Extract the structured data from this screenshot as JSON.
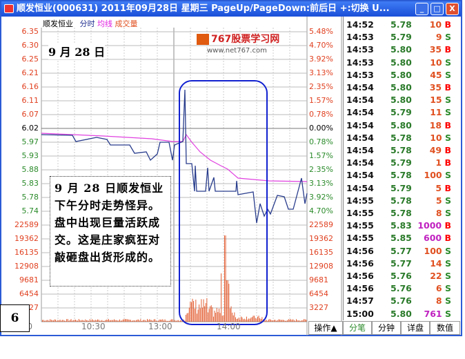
{
  "window": {
    "title": "顺发恒业(000631) 2011年09月28日 星期三 PageUp/PageDown:前后日 +:切换 U...",
    "buttons": {
      "minimize": "_",
      "maximize": "□",
      "close": "X"
    }
  },
  "legend": {
    "name": "顺发恒业",
    "fenshi": "分时",
    "avg": "均线",
    "vol": "成交量"
  },
  "price_ticks": [
    "6.35",
    "6.30",
    "6.25",
    "6.21",
    "6.16",
    "6.11",
    "6.07",
    "6.02",
    "5.97",
    "5.93",
    "5.88",
    "5.83",
    "5.78",
    "5.74"
  ],
  "pct_ticks": [
    "5.48%",
    "4.70%",
    "3.92%",
    "3.13%",
    "2.35%",
    "1.57%",
    "0.78%",
    "0.00%",
    "0.78%",
    "1.57%",
    "2.35%",
    "3.13%",
    "3.92%",
    "4.70%"
  ],
  "vol_ticks": [
    "22589",
    "19362",
    "16135",
    "12908",
    "9681",
    "6454",
    "3227"
  ],
  "time_ticks": [
    "9:30",
    "10:30",
    "13:00",
    "14:00"
  ],
  "annotation": {
    "date": "9 月 28 日",
    "text": "9 月 28 日顺发恒业下午分时走势怪异。盘中出现巨量活跃成交。这是庄家疯狂对敲砸盘出货形成的。",
    "slide": "6"
  },
  "watermark": {
    "name": "767股票学习网",
    "url": "www.net767.com"
  },
  "colors": {
    "price_line": "#283c8c",
    "avg_line": "#e040e0",
    "volume": "#e05020",
    "highlight": "#1020d0",
    "buy": "#ff0000",
    "sell": "#2a8a2a",
    "big": "#c020c0"
  },
  "trades": [
    {
      "time": "14:52",
      "price": "5.78",
      "vol": "10",
      "side": "B"
    },
    {
      "time": "14:53",
      "price": "5.79",
      "vol": "9",
      "side": "S"
    },
    {
      "time": "14:53",
      "price": "5.80",
      "vol": "35",
      "side": "B"
    },
    {
      "time": "14:53",
      "price": "5.80",
      "vol": "10",
      "side": "S"
    },
    {
      "time": "14:53",
      "price": "5.80",
      "vol": "45",
      "side": "S"
    },
    {
      "time": "14:54",
      "price": "5.80",
      "vol": "35",
      "side": "B"
    },
    {
      "time": "14:54",
      "price": "5.80",
      "vol": "15",
      "side": "S"
    },
    {
      "time": "14:54",
      "price": "5.79",
      "vol": "11",
      "side": "S"
    },
    {
      "time": "14:54",
      "price": "5.80",
      "vol": "18",
      "side": "B"
    },
    {
      "time": "14:54",
      "price": "5.78",
      "vol": "10",
      "side": "S"
    },
    {
      "time": "14:54",
      "price": "5.78",
      "vol": "49",
      "side": "B"
    },
    {
      "time": "14:54",
      "price": "5.79",
      "vol": "1",
      "side": "B"
    },
    {
      "time": "14:54",
      "price": "5.78",
      "vol": "100",
      "side": "S"
    },
    {
      "time": "14:54",
      "price": "5.79",
      "vol": "5",
      "side": "B"
    },
    {
      "time": "14:55",
      "price": "5.78",
      "vol": "5",
      "side": "S"
    },
    {
      "time": "14:55",
      "price": "5.78",
      "vol": "8",
      "side": "S"
    },
    {
      "time": "14:55",
      "price": "5.83",
      "vol": "1000",
      "side": "B"
    },
    {
      "time": "14:55",
      "price": "5.85",
      "vol": "600",
      "side": "B"
    },
    {
      "time": "14:56",
      "price": "5.77",
      "vol": "100",
      "side": "S"
    },
    {
      "time": "14:56",
      "price": "5.77",
      "vol": "14",
      "side": "S"
    },
    {
      "time": "14:56",
      "price": "5.76",
      "vol": "22",
      "side": "S"
    },
    {
      "time": "14:56",
      "price": "5.76",
      "vol": "6",
      "side": "S"
    },
    {
      "time": "14:57",
      "price": "5.76",
      "vol": "8",
      "side": "S"
    },
    {
      "time": "15:00",
      "price": "5.80",
      "vol": "761",
      "side": "S"
    }
  ],
  "tabs": {
    "ops": "操作▲",
    "fenbi": "分笔",
    "fenzhong": "分钟",
    "xiangpan": "详盘",
    "shuzhi": "数值"
  }
}
